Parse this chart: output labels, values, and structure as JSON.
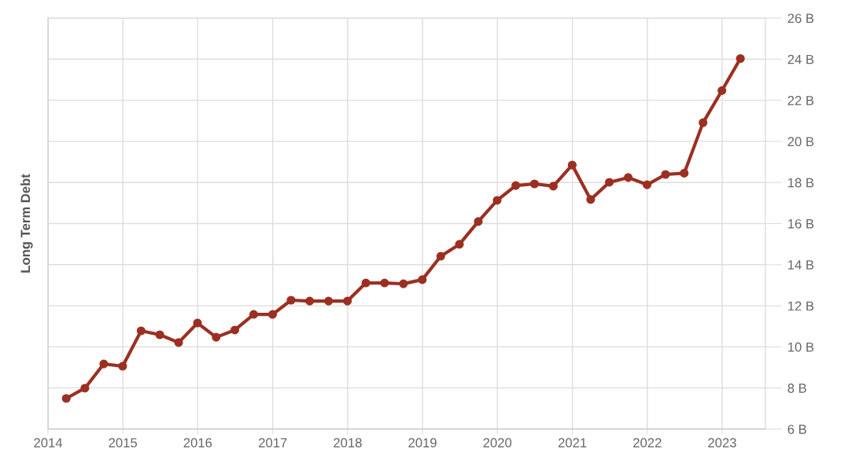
{
  "chart_data": {
    "type": "line",
    "ylabel": "Long Term Debt",
    "x": [
      "2014-03-31",
      "2014-06-30",
      "2014-09-30",
      "2014-12-31",
      "2015-03-31",
      "2015-06-30",
      "2015-09-30",
      "2015-12-31",
      "2016-03-31",
      "2016-06-30",
      "2016-09-30",
      "2016-12-31",
      "2017-03-31",
      "2017-06-30",
      "2017-09-30",
      "2017-12-31",
      "2018-03-31",
      "2018-06-30",
      "2018-09-30",
      "2018-12-31",
      "2019-03-31",
      "2019-06-30",
      "2019-09-30",
      "2019-12-31",
      "2020-03-31",
      "2020-06-30",
      "2020-09-30",
      "2020-12-31",
      "2021-03-31",
      "2021-06-30",
      "2021-09-30",
      "2021-12-31",
      "2022-03-31",
      "2022-06-30",
      "2022-09-30",
      "2022-12-31",
      "2023-03-31"
    ],
    "series": [
      {
        "color": "#9b3022",
        "values": [
          7.49,
          7.99,
          9.17,
          9.06,
          10.78,
          10.59,
          10.21,
          11.16,
          10.47,
          10.82,
          11.58,
          11.58,
          12.27,
          12.23,
          12.23,
          12.23,
          13.11,
          13.11,
          13.07,
          13.27,
          14.41,
          14.99,
          16.1,
          17.13,
          17.85,
          17.93,
          17.82,
          18.85,
          17.17,
          18.01,
          18.24,
          17.89,
          18.39,
          18.45,
          20.91,
          22.47,
          24.03
        ]
      }
    ],
    "xlim": [
      "2014",
      "2023-07-31"
    ],
    "xticks": [
      "2014",
      "2015",
      "2016",
      "2017",
      "2018",
      "2019",
      "2020",
      "2021",
      "2022",
      "2023"
    ],
    "ylim": [
      6,
      26
    ],
    "yticks": [
      {
        "value": 6,
        "label": "6 B"
      },
      {
        "value": 8,
        "label": "8 B"
      },
      {
        "value": 10,
        "label": "10 B"
      },
      {
        "value": 12,
        "label": "12 B"
      },
      {
        "value": 14,
        "label": "14 B"
      },
      {
        "value": 16,
        "label": "16 B"
      },
      {
        "value": 18,
        "label": "18 B"
      },
      {
        "value": 20,
        "label": "20 B"
      },
      {
        "value": 22,
        "label": "22 B"
      },
      {
        "value": 24,
        "label": "24 B"
      },
      {
        "value": 26,
        "label": "26 B"
      }
    ],
    "grid": true,
    "marker": "circle",
    "line_style": "solid"
  }
}
